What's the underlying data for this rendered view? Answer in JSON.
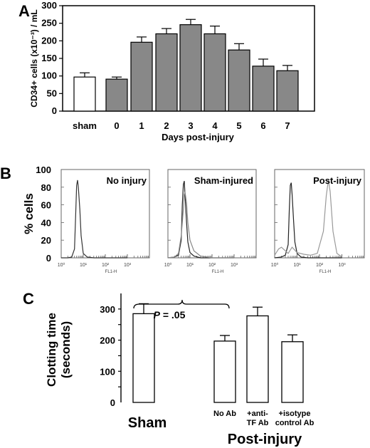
{
  "chart_data": [
    {
      "panel": "A",
      "type": "bar",
      "ylabel": "CD34+ cells (x10⁻³) / mL",
      "xlabel": "Days post-injury",
      "ylim": [
        0,
        300
      ],
      "yticks": [
        "0",
        "50",
        "100",
        "150",
        "200",
        "250",
        "300"
      ],
      "categories": [
        "sham",
        "0",
        "1",
        "2",
        "3",
        "4",
        "5",
        "6",
        "7"
      ],
      "values": [
        97,
        91,
        196,
        220,
        246,
        220,
        174,
        128,
        115
      ],
      "errors": [
        12,
        6,
        15,
        15,
        15,
        22,
        18,
        20,
        15
      ],
      "colors": [
        "#ffffff",
        "#888888",
        "#888888",
        "#888888",
        "#888888",
        "#888888",
        "#888888",
        "#888888",
        "#888888"
      ]
    },
    {
      "panel": "B",
      "type": "line",
      "ylabel": "% cells",
      "xaxis_label": "FL1-H",
      "xscale": "log",
      "xticks": [
        "10⁰",
        "10¹",
        "10²",
        "10³"
      ],
      "yticks": [
        "0",
        "20",
        "40",
        "60",
        "80",
        "100"
      ],
      "ylim": [
        0,
        100
      ],
      "subplots": [
        {
          "title": "No injury",
          "series": [
            {
              "color": "#333333",
              "x": [
                1,
                2,
                3,
                4,
                4.5,
                5,
                5.5,
                6,
                7,
                8,
                10,
                15,
                30,
                100,
                1000
              ],
              "y": [
                0,
                0,
                1,
                10,
                45,
                82,
                88,
                80,
                55,
                25,
                5,
                1,
                0,
                0,
                0
              ]
            }
          ]
        },
        {
          "title": "Sham-injured",
          "series": [
            {
              "color": "#222222",
              "x": [
                1,
                2,
                3,
                4,
                4.5,
                5,
                5.5,
                6,
                7,
                8,
                10,
                15,
                30,
                100,
                1000
              ],
              "y": [
                0,
                1,
                3,
                20,
                60,
                83,
                87,
                70,
                40,
                18,
                6,
                2,
                0,
                0,
                0
              ]
            },
            {
              "color": "#888888",
              "x": [
                1,
                2,
                3,
                4,
                5,
                5.5,
                6,
                7,
                8,
                10,
                15,
                30,
                100,
                1000
              ],
              "y": [
                0,
                1,
                5,
                25,
                55,
                72,
                74,
                62,
                40,
                20,
                8,
                2,
                0,
                0
              ]
            }
          ]
        },
        {
          "title": "Post-injury",
          "series": [
            {
              "color": "#222222",
              "x": [
                1,
                2,
                3,
                4,
                4.5,
                5,
                5.5,
                6,
                7,
                8,
                10,
                15,
                30,
                100,
                1000
              ],
              "y": [
                0,
                1,
                3,
                15,
                55,
                82,
                85,
                72,
                42,
                18,
                5,
                1,
                0,
                0,
                0
              ]
            },
            {
              "color": "#999999",
              "x": [
                1,
                1.5,
                2,
                3,
                4,
                6,
                10,
                20,
                40,
                80,
                150,
                200,
                250,
                300,
                400,
                600,
                1000
              ],
              "y": [
                3,
                10,
                12,
                8,
                5,
                12,
                6,
                4,
                3,
                5,
                30,
                70,
                88,
                75,
                30,
                5,
                1
              ]
            }
          ]
        }
      ]
    },
    {
      "panel": "C",
      "type": "bar",
      "ylabel": "Clotting time (seconds)",
      "ylim": [
        0,
        350
      ],
      "yticks": [
        "0",
        "100",
        "200",
        "300"
      ],
      "categories": [
        "Sham",
        "No Ab",
        "+anti- TF Ab",
        "+isotype control Ab"
      ],
      "category_lines": [
        [
          "Sham"
        ],
        [
          "No Ab"
        ],
        [
          "+anti-",
          "TF Ab"
        ],
        [
          "+isotype",
          "control Ab"
        ]
      ],
      "values": [
        285,
        197,
        278,
        195
      ],
      "errors": [
        32,
        18,
        28,
        22
      ],
      "group_label": "Post-injury",
      "annotation": "P = .05"
    }
  ],
  "labels": {
    "panel_a": "A",
    "panel_b": "B",
    "panel_c": "C",
    "annotation_prefix": "P",
    "annotation_rest": " = .05"
  }
}
